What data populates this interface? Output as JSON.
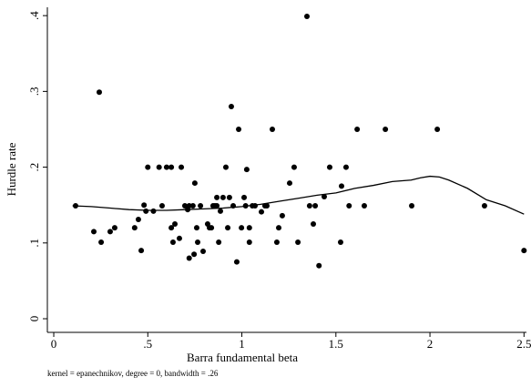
{
  "chart_data": {
    "type": "scatter",
    "xlabel": "Barra fundamental beta",
    "ylabel": "Hurdle rate",
    "note": "kernel = epanechnikov, degree = 0, bandwidth = .26",
    "xlim": [
      -0.034,
      2.513
    ],
    "ylim": [
      -0.018,
      0.411
    ],
    "xticks": [
      0,
      {
        "value": 0.5,
        "label": ".5"
      },
      1,
      1.5,
      2,
      2.5
    ],
    "yticks": [
      0,
      {
        "value": 0.1,
        "label": ".1"
      },
      {
        "value": 0.2,
        "label": ".2"
      },
      {
        "value": 0.3,
        "label": ".3"
      },
      {
        "value": 0.4,
        "label": ".4"
      }
    ],
    "grid": false,
    "series": [
      {
        "color": "#000000",
        "mode": "markers",
        "x": [
          0.116,
          0.213,
          0.242,
          0.252,
          0.3,
          0.324,
          0.43,
          0.45,
          0.465,
          0.48,
          0.49,
          0.5,
          0.53,
          0.56,
          0.576,
          0.6,
          0.625,
          0.625,
          0.634,
          0.644,
          0.668,
          0.678,
          0.697,
          0.712,
          0.72,
          0.72,
          0.74,
          0.746,
          0.75,
          0.76,
          0.765,
          0.78,
          0.794,
          0.818,
          0.828,
          0.838,
          0.847,
          0.857,
          0.867,
          0.867,
          0.877,
          0.886,
          0.9,
          0.915,
          0.925,
          0.934,
          0.944,
          0.954,
          0.973,
          0.983,
          0.998,
          1.012,
          1.02,
          1.026,
          1.04,
          1.04,
          1.056,
          1.07,
          1.104,
          1.123,
          1.133,
          1.162,
          1.186,
          1.196,
          1.215,
          1.254,
          1.278,
          1.298,
          1.346,
          1.36,
          1.38,
          1.39,
          1.41,
          1.438,
          1.467,
          1.525,
          1.53,
          1.554,
          1.57,
          1.613,
          1.651,
          1.763,
          1.903,
          2.039,
          2.29,
          2.5
        ],
        "values": [
          0.149,
          0.115,
          0.299,
          0.101,
          0.115,
          0.12,
          0.12,
          0.131,
          0.09,
          0.15,
          0.142,
          0.2,
          0.142,
          0.2,
          0.149,
          0.2,
          0.2,
          0.12,
          0.101,
          0.125,
          0.106,
          0.2,
          0.149,
          0.144,
          0.149,
          0.08,
          0.149,
          0.085,
          0.179,
          0.12,
          0.101,
          0.149,
          0.089,
          0.125,
          0.12,
          0.12,
          0.149,
          0.149,
          0.149,
          0.16,
          0.101,
          0.142,
          0.16,
          0.2,
          0.12,
          0.16,
          0.28,
          0.149,
          0.075,
          0.25,
          0.12,
          0.16,
          0.149,
          0.197,
          0.12,
          0.101,
          0.149,
          0.149,
          0.141,
          0.149,
          0.149,
          0.25,
          0.101,
          0.12,
          0.136,
          0.179,
          0.2,
          0.101,
          0.399,
          0.149,
          0.125,
          0.149,
          0.07,
          0.161,
          0.2,
          0.101,
          0.175,
          0.2,
          0.149,
          0.25,
          0.149,
          0.25,
          0.149,
          0.25,
          0.149,
          0.09
        ]
      },
      {
        "color": "#000000",
        "mode": "line",
        "x": [
          0.1,
          0.2,
          0.3,
          0.4,
          0.5,
          0.6,
          0.7,
          0.8,
          0.9,
          1.0,
          1.1,
          1.2,
          1.3,
          1.4,
          1.5,
          1.6,
          1.7,
          1.8,
          1.9,
          1.95,
          2.0,
          2.05,
          2.1,
          2.2,
          2.3,
          2.4,
          2.5
        ],
        "values": [
          0.149,
          0.148,
          0.146,
          0.144,
          0.143,
          0.143,
          0.144,
          0.145,
          0.146,
          0.148,
          0.151,
          0.155,
          0.159,
          0.163,
          0.166,
          0.172,
          0.176,
          0.181,
          0.183,
          0.186,
          0.188,
          0.187,
          0.183,
          0.172,
          0.157,
          0.149,
          0.138
        ]
      }
    ]
  }
}
